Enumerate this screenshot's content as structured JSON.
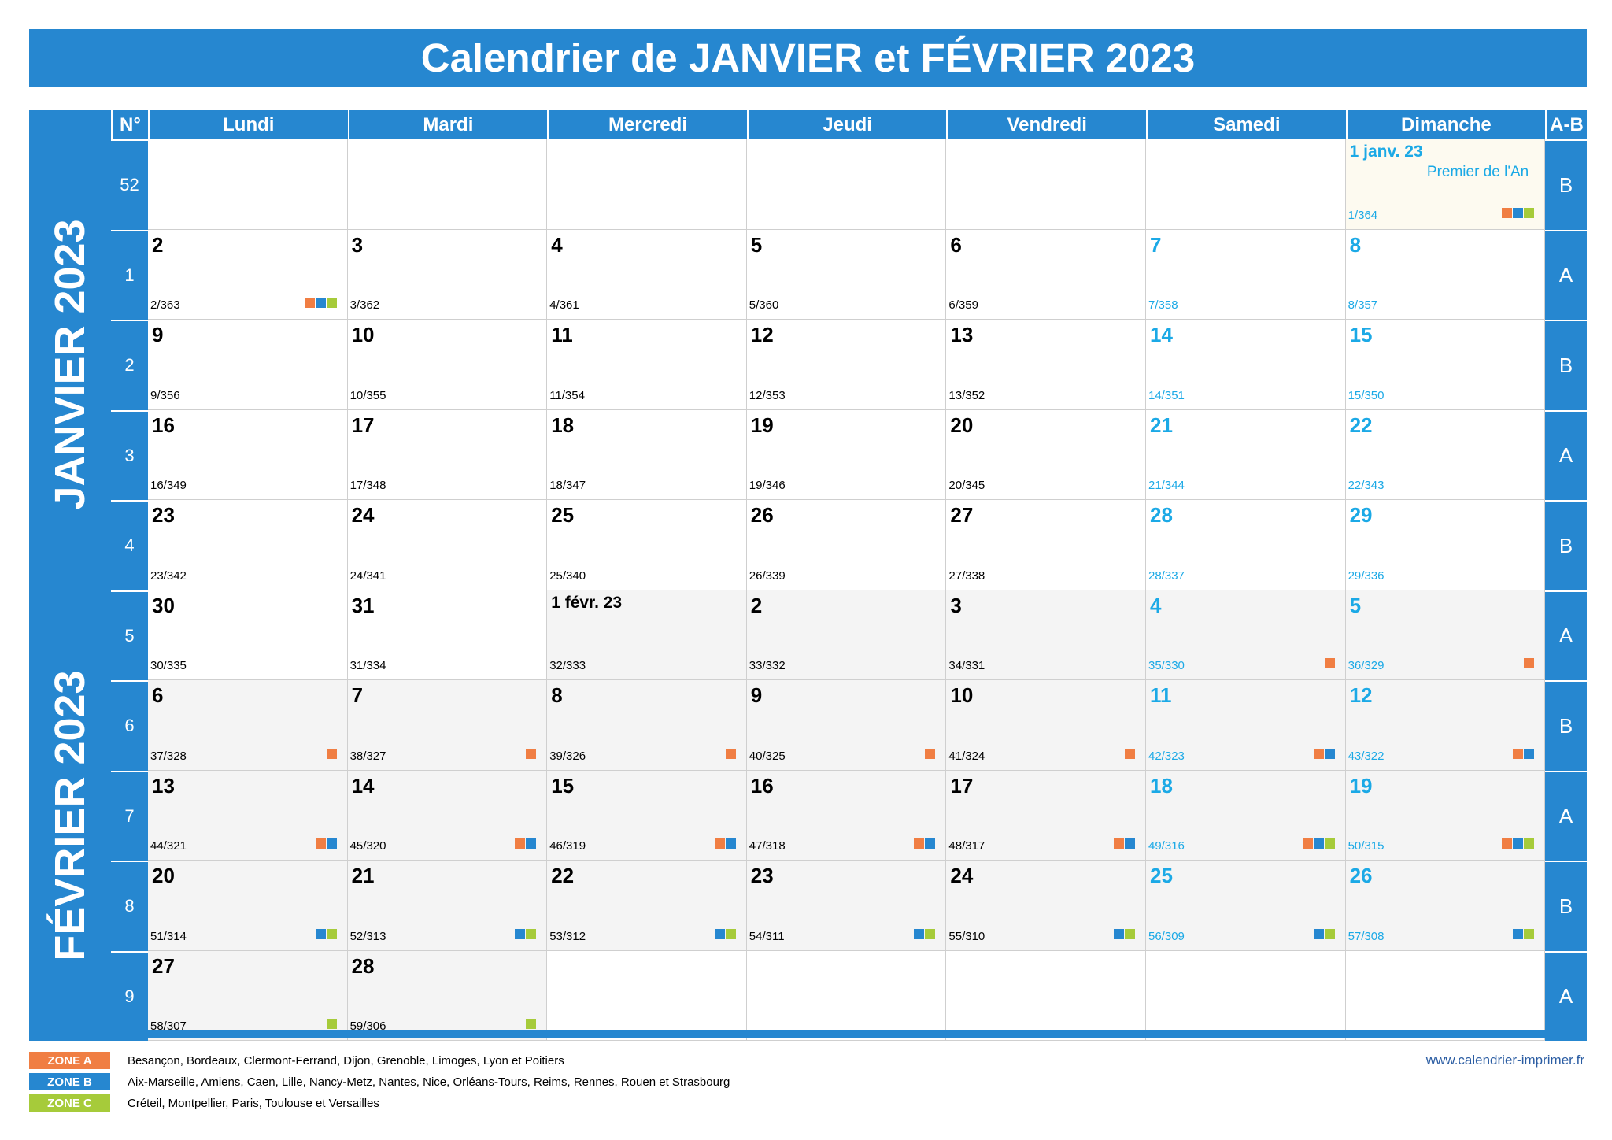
{
  "title": "Calendrier de JANVIER et FÉVRIER 2023",
  "headers": {
    "week_no": "N°",
    "days": [
      "Lundi",
      "Mardi",
      "Mercredi",
      "Jeudi",
      "Vendredi",
      "Samedi",
      "Dimanche"
    ],
    "ab": "A-B"
  },
  "months": [
    "JANVIER 2023",
    "FÉVRIER 2023"
  ],
  "colors": {
    "header_blue": "#2687d0",
    "weekend_cyan": "#1ba9e6",
    "zone_a": "#f07e43",
    "zone_b": "#2687d0",
    "zone_c": "#a6cb3a",
    "february_bg": "#f4f4f4",
    "holiday_bg": "#fdfaf0"
  },
  "weeks": [
    {
      "n": "52",
      "ab": "B",
      "days": [
        null,
        null,
        null,
        null,
        null,
        null,
        {
          "num": "1 janv. 23",
          "dy": "1/364",
          "we": true,
          "zones": [
            "A",
            "B",
            "C"
          ],
          "holiday": "Premier de l'An"
        }
      ]
    },
    {
      "n": "1",
      "ab": "A",
      "days": [
        {
          "num": "2",
          "dy": "2/363",
          "zones": [
            "A",
            "B",
            "C"
          ]
        },
        {
          "num": "3",
          "dy": "3/362"
        },
        {
          "num": "4",
          "dy": "4/361"
        },
        {
          "num": "5",
          "dy": "5/360"
        },
        {
          "num": "6",
          "dy": "6/359"
        },
        {
          "num": "7",
          "dy": "7/358",
          "we": true
        },
        {
          "num": "8",
          "dy": "8/357",
          "we": true
        }
      ]
    },
    {
      "n": "2",
      "ab": "B",
      "days": [
        {
          "num": "9",
          "dy": "9/356"
        },
        {
          "num": "10",
          "dy": "10/355"
        },
        {
          "num": "11",
          "dy": "11/354"
        },
        {
          "num": "12",
          "dy": "12/353"
        },
        {
          "num": "13",
          "dy": "13/352"
        },
        {
          "num": "14",
          "dy": "14/351",
          "we": true
        },
        {
          "num": "15",
          "dy": "15/350",
          "we": true
        }
      ]
    },
    {
      "n": "3",
      "ab": "A",
      "days": [
        {
          "num": "16",
          "dy": "16/349"
        },
        {
          "num": "17",
          "dy": "17/348"
        },
        {
          "num": "18",
          "dy": "18/347"
        },
        {
          "num": "19",
          "dy": "19/346"
        },
        {
          "num": "20",
          "dy": "20/345"
        },
        {
          "num": "21",
          "dy": "21/344",
          "we": true
        },
        {
          "num": "22",
          "dy": "22/343",
          "we": true
        }
      ]
    },
    {
      "n": "4",
      "ab": "B",
      "days": [
        {
          "num": "23",
          "dy": "23/342"
        },
        {
          "num": "24",
          "dy": "24/341"
        },
        {
          "num": "25",
          "dy": "25/340"
        },
        {
          "num": "26",
          "dy": "26/339"
        },
        {
          "num": "27",
          "dy": "27/338"
        },
        {
          "num": "28",
          "dy": "28/337",
          "we": true
        },
        {
          "num": "29",
          "dy": "29/336",
          "we": true
        }
      ]
    },
    {
      "n": "5",
      "ab": "A",
      "days": [
        {
          "num": "30",
          "dy": "30/335"
        },
        {
          "num": "31",
          "dy": "31/334"
        },
        {
          "num": "1 févr. 23",
          "dy": "32/333",
          "feb": true
        },
        {
          "num": "2",
          "dy": "33/332",
          "feb": true
        },
        {
          "num": "3",
          "dy": "34/331",
          "feb": true
        },
        {
          "num": "4",
          "dy": "35/330",
          "we": true,
          "feb": true,
          "zones": [
            "A"
          ]
        },
        {
          "num": "5",
          "dy": "36/329",
          "we": true,
          "feb": true,
          "zones": [
            "A"
          ]
        }
      ]
    },
    {
      "n": "6",
      "ab": "B",
      "days": [
        {
          "num": "6",
          "dy": "37/328",
          "feb": true,
          "zones": [
            "A"
          ]
        },
        {
          "num": "7",
          "dy": "38/327",
          "feb": true,
          "zones": [
            "A"
          ]
        },
        {
          "num": "8",
          "dy": "39/326",
          "feb": true,
          "zones": [
            "A"
          ]
        },
        {
          "num": "9",
          "dy": "40/325",
          "feb": true,
          "zones": [
            "A"
          ]
        },
        {
          "num": "10",
          "dy": "41/324",
          "feb": true,
          "zones": [
            "A"
          ]
        },
        {
          "num": "11",
          "dy": "42/323",
          "we": true,
          "feb": true,
          "zones": [
            "A",
            "B"
          ]
        },
        {
          "num": "12",
          "dy": "43/322",
          "we": true,
          "feb": true,
          "zones": [
            "A",
            "B"
          ]
        }
      ]
    },
    {
      "n": "7",
      "ab": "A",
      "days": [
        {
          "num": "13",
          "dy": "44/321",
          "feb": true,
          "zones": [
            "A",
            "B"
          ]
        },
        {
          "num": "14",
          "dy": "45/320",
          "feb": true,
          "zones": [
            "A",
            "B"
          ]
        },
        {
          "num": "15",
          "dy": "46/319",
          "feb": true,
          "zones": [
            "A",
            "B"
          ]
        },
        {
          "num": "16",
          "dy": "47/318",
          "feb": true,
          "zones": [
            "A",
            "B"
          ]
        },
        {
          "num": "17",
          "dy": "48/317",
          "feb": true,
          "zones": [
            "A",
            "B"
          ]
        },
        {
          "num": "18",
          "dy": "49/316",
          "we": true,
          "feb": true,
          "zones": [
            "A",
            "B",
            "C"
          ]
        },
        {
          "num": "19",
          "dy": "50/315",
          "we": true,
          "feb": true,
          "zones": [
            "A",
            "B",
            "C"
          ]
        }
      ]
    },
    {
      "n": "8",
      "ab": "B",
      "days": [
        {
          "num": "20",
          "dy": "51/314",
          "feb": true,
          "zones": [
            "B",
            "C"
          ]
        },
        {
          "num": "21",
          "dy": "52/313",
          "feb": true,
          "zones": [
            "B",
            "C"
          ]
        },
        {
          "num": "22",
          "dy": "53/312",
          "feb": true,
          "zones": [
            "B",
            "C"
          ]
        },
        {
          "num": "23",
          "dy": "54/311",
          "feb": true,
          "zones": [
            "B",
            "C"
          ]
        },
        {
          "num": "24",
          "dy": "55/310",
          "feb": true,
          "zones": [
            "B",
            "C"
          ]
        },
        {
          "num": "25",
          "dy": "56/309",
          "we": true,
          "feb": true,
          "zones": [
            "B",
            "C"
          ]
        },
        {
          "num": "26",
          "dy": "57/308",
          "we": true,
          "feb": true,
          "zones": [
            "B",
            "C"
          ]
        }
      ]
    },
    {
      "n": "9",
      "ab": "A",
      "days": [
        {
          "num": "27",
          "dy": "58/307",
          "feb": true,
          "zones": [
            "C"
          ]
        },
        {
          "num": "28",
          "dy": "59/306",
          "feb": true,
          "zones": [
            "C"
          ]
        },
        null,
        null,
        null,
        null,
        null
      ]
    }
  ],
  "legend": [
    {
      "badge": "ZONE A",
      "zone": "A",
      "text": "Besançon, Bordeaux, Clermont-Ferrand, Dijon, Grenoble, Limoges, Lyon et Poitiers"
    },
    {
      "badge": "ZONE B",
      "zone": "B",
      "text": "Aix-Marseille, Amiens, Caen, Lille, Nancy-Metz, Nantes, Nice, Orléans-Tours, Reims, Rennes, Rouen et Strasbourg"
    },
    {
      "badge": "ZONE C",
      "zone": "C",
      "text": "Créteil, Montpellier, Paris, Toulouse et Versailles"
    }
  ],
  "website": "www.calendrier-imprimer.fr"
}
